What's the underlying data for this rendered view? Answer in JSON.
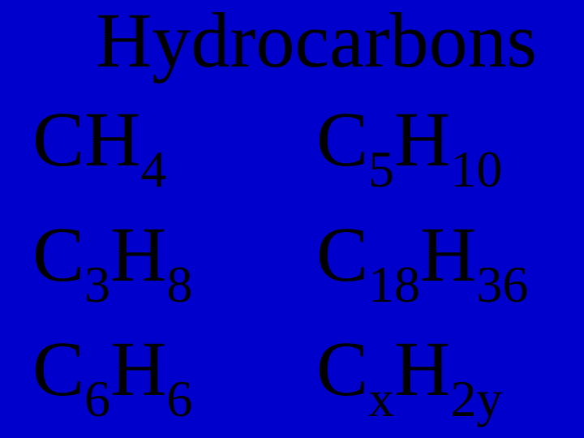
{
  "slide": {
    "background_color": "#0000cc",
    "text_color": "#000000",
    "font_family": "Times New Roman",
    "title": "Hydrocarbons",
    "title_fontsize": 96,
    "formula_fontsize": 96,
    "subscript_fontsize": 64,
    "left_column": [
      {
        "parts": [
          {
            "t": "CH",
            "sub": false
          },
          {
            "t": "4",
            "sub": true
          }
        ]
      },
      {
        "parts": [
          {
            "t": "C",
            "sub": false
          },
          {
            "t": "3",
            "sub": true
          },
          {
            "t": "H",
            "sub": false
          },
          {
            "t": "8",
            "sub": true
          }
        ]
      },
      {
        "parts": [
          {
            "t": "C",
            "sub": false
          },
          {
            "t": "6",
            "sub": true
          },
          {
            "t": "H",
            "sub": false
          },
          {
            "t": "6",
            "sub": true
          }
        ]
      }
    ],
    "right_column": [
      {
        "parts": [
          {
            "t": "C",
            "sub": false
          },
          {
            "t": "5",
            "sub": true
          },
          {
            "t": "H",
            "sub": false
          },
          {
            "t": "10",
            "sub": true
          }
        ]
      },
      {
        "parts": [
          {
            "t": "C",
            "sub": false
          },
          {
            "t": "18",
            "sub": true
          },
          {
            "t": "H",
            "sub": false
          },
          {
            "t": "36",
            "sub": true
          }
        ]
      },
      {
        "parts": [
          {
            "t": "C",
            "sub": false
          },
          {
            "t": "x",
            "sub": true
          },
          {
            "t": "H",
            "sub": false
          },
          {
            "t": "2y",
            "sub": true
          }
        ]
      }
    ]
  }
}
